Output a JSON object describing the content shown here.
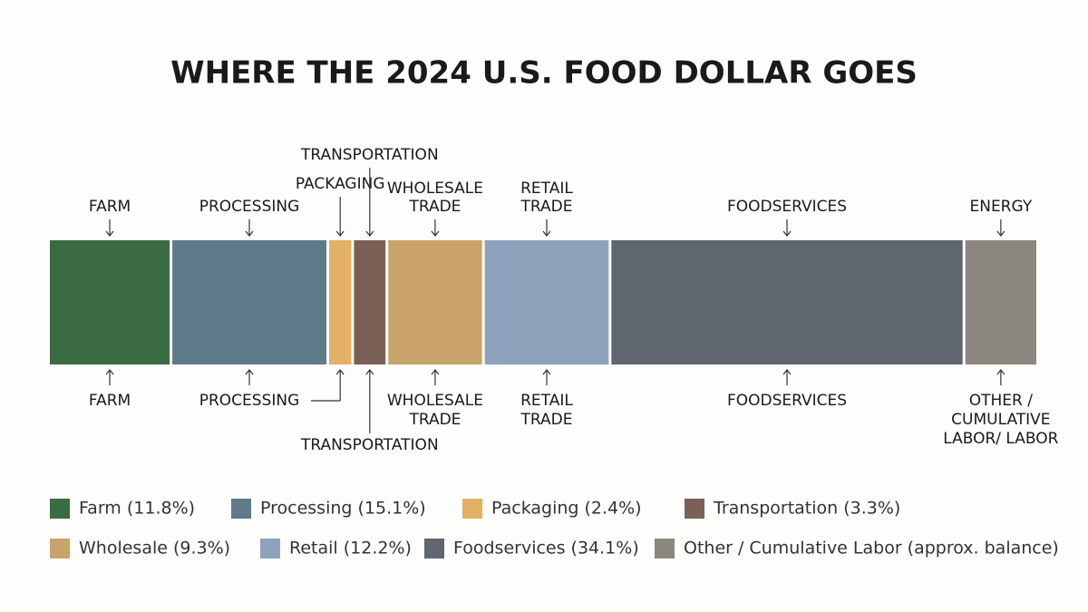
{
  "chart_data": {
    "type": "stacked-bar",
    "title": "WHERE THE 2024 U.S. FOOD DOLLAR GOES",
    "series": [
      {
        "name": "Farm (11.8%)",
        "color": "#3b6b40",
        "values": [
          11.8
        ],
        "top_label": [
          "FARM"
        ],
        "bottom_label": [
          "FARM"
        ]
      },
      {
        "name": "Processing (15.1%)",
        "color": "#5f7a88",
        "values": [
          15.1
        ],
        "top_label": [
          "PROCESSING"
        ],
        "bottom_label": [
          "PROCESSING"
        ]
      },
      {
        "name": "Packaging (2.4%)",
        "color": "#e3b066",
        "values": [
          2.4
        ],
        "top_label": [
          "PACKAGING"
        ],
        "bottom_label": null
      },
      {
        "name": "Transportation (3.3%)",
        "color": "#7b6058",
        "values": [
          3.3
        ],
        "top_label": [
          "TRANSPORTATION"
        ],
        "bottom_label": [
          "TRANSPORTATION"
        ]
      },
      {
        "name": "Wholesale (9.3%)",
        "color": "#c9a36a",
        "values": [
          9.3
        ],
        "top_label": [
          "WHOLESALE",
          "TRADE"
        ],
        "bottom_label": [
          "WHOLESALE",
          "TRADE"
        ]
      },
      {
        "name": "Retail (12.2%)",
        "color": "#8ea3bb",
        "values": [
          12.2
        ],
        "top_label": [
          "RETAIL",
          "TRADE"
        ],
        "bottom_label": [
          "RETAIL",
          "TRADE"
        ]
      },
      {
        "name": "Foodservices (34.1%)",
        "color": "#5f666e",
        "values": [
          34.1
        ],
        "top_label": [
          "FOODSERVICES"
        ],
        "bottom_label": [
          "FOODSERVICES"
        ]
      },
      {
        "name": "Other / Cumulative Labor (approx. balance)",
        "color": "#8c877e",
        "values": [
          7.1
        ],
        "top_label": [
          "ENERGY"
        ],
        "bottom_label": [
          "OTHER /",
          "CUMULATIVE",
          "LABOR/ LABOR"
        ]
      }
    ]
  }
}
